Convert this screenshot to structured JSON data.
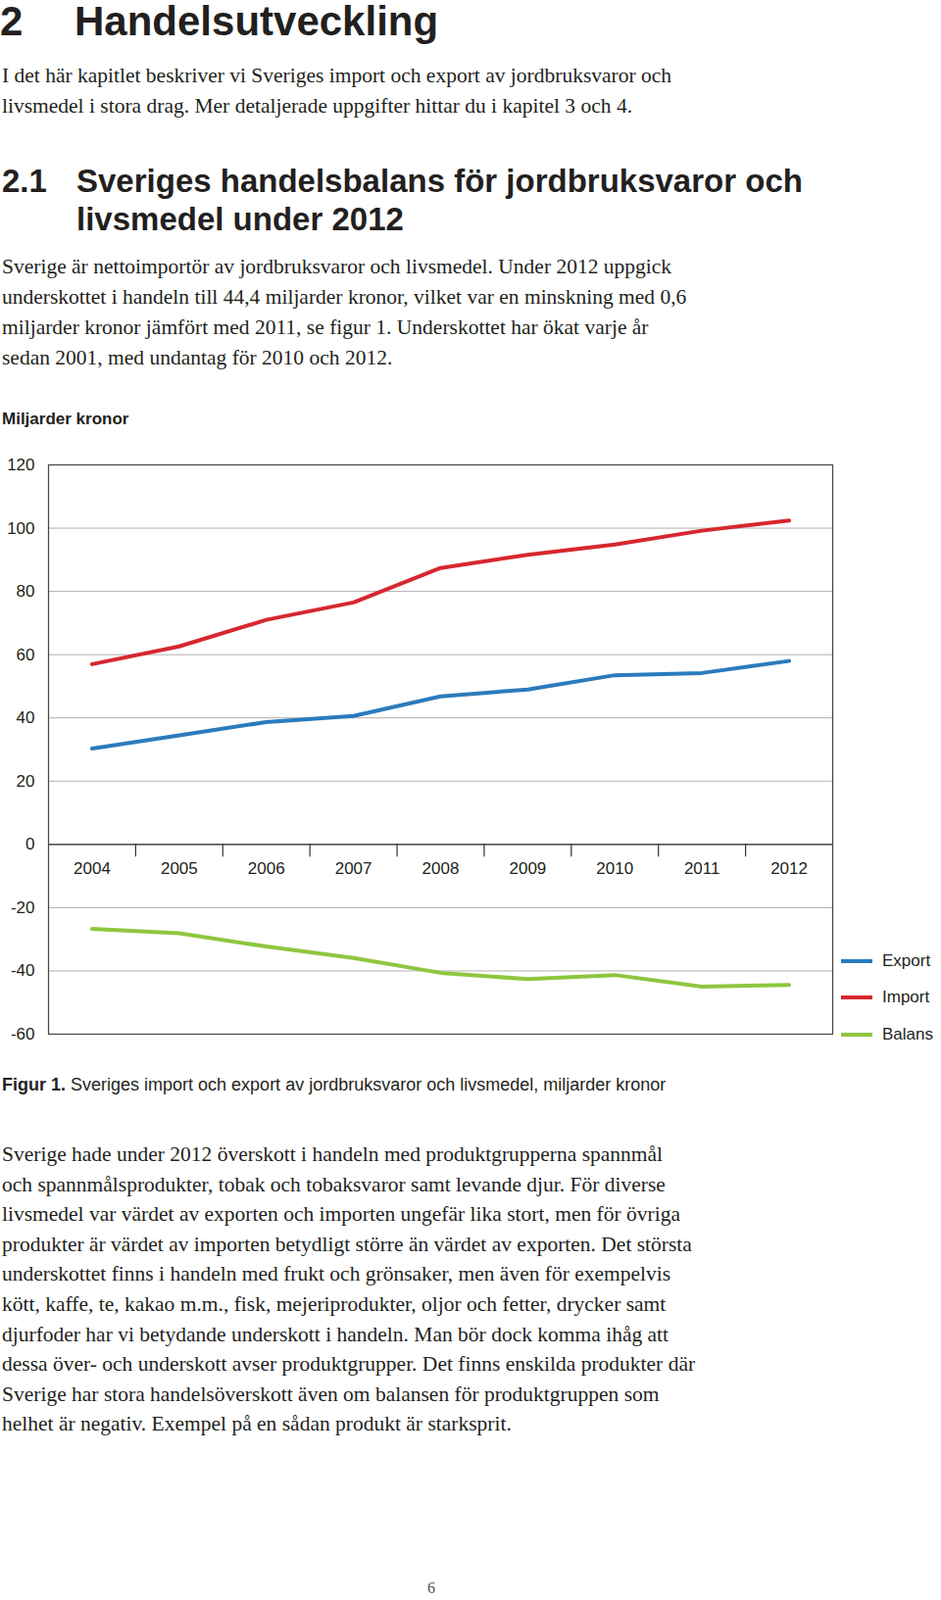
{
  "heading": {
    "number": "2",
    "title": "Handelsutveckling"
  },
  "intro": [
    "I det här kapitlet beskriver vi Sveriges import och export av jordbruksvaror och",
    "livsmedel i stora drag. Mer detaljerade uppgifter hittar du i kapitel 3 och 4."
  ],
  "section": {
    "number": "2.1",
    "title": [
      "Sveriges handelsbalans för jordbruksvaror och",
      "livsmedel under 2012"
    ]
  },
  "paragraph1": [
    "Sverige är nettoimportör av jordbruksvaror och livsmedel. Under 2012 uppgick",
    "underskottet i handeln till 44,4 miljarder kronor, vilket var en minskning med 0,6",
    "miljarder kronor jämfört med 2011, se figur 1. Underskottet har ökat varje år",
    "sedan 2001, med undantag för 2010 och 2012."
  ],
  "chart_data": {
    "type": "line",
    "ylabel": "Miljarder kronor",
    "categories": [
      "2004",
      "2005",
      "2006",
      "2007",
      "2008",
      "2009",
      "2010",
      "2011",
      "2012"
    ],
    "series": [
      {
        "name": "Export",
        "color": "#2b7bbd",
        "values": [
          30.3,
          34.5,
          38.7,
          40.6,
          46.8,
          49.0,
          53.5,
          54.2,
          58.0
        ]
      },
      {
        "name": "Import",
        "color": "#d7272f",
        "values": [
          57.0,
          62.6,
          71.0,
          76.5,
          87.4,
          91.6,
          94.8,
          99.2,
          102.4
        ]
      },
      {
        "name": "Balans",
        "color": "#8dc63f",
        "values": [
          -26.7,
          -28.1,
          -32.3,
          -35.9,
          -40.6,
          -42.6,
          -41.3,
          -45.0,
          -44.4
        ]
      }
    ],
    "ylim": [
      -60,
      120
    ],
    "yticks": [
      -60,
      -40,
      -20,
      0,
      20,
      40,
      60,
      80,
      100,
      120
    ],
    "grid": true,
    "legend": "right"
  },
  "caption": {
    "label": "Figur 1.",
    "text": "Sveriges import och export av jordbruksvaror och livsmedel, miljarder kronor"
  },
  "paragraph2": [
    "Sverige hade under 2012 överskott i handeln med produktgrupperna spannmål",
    "och spannmålsprodukter, tobak och tobaksvaror samt levande djur. För diverse",
    "livsmedel var värdet av exporten och importen ungefär lika stort, men för övriga",
    "produkter är värdet av importen betydligt större än värdet av exporten. Det största",
    "underskottet finns i handeln med frukt och grönsaker, men även för exempelvis",
    "kött, kaffe, te, kakao m.m., fisk, mejeriprodukter, oljor och fetter, drycker samt",
    "djurfoder har vi betydande underskott i handeln. Man bör dock komma ihåg att",
    "dessa över- och underskott avser produktgrupper. Det finns enskilda produkter där",
    "Sverige har stora handelsöverskott även om balansen för produktgruppen som",
    "helhet är negativ. Exempel på en sådan produkt är starksprit."
  ],
  "page_number": "6"
}
